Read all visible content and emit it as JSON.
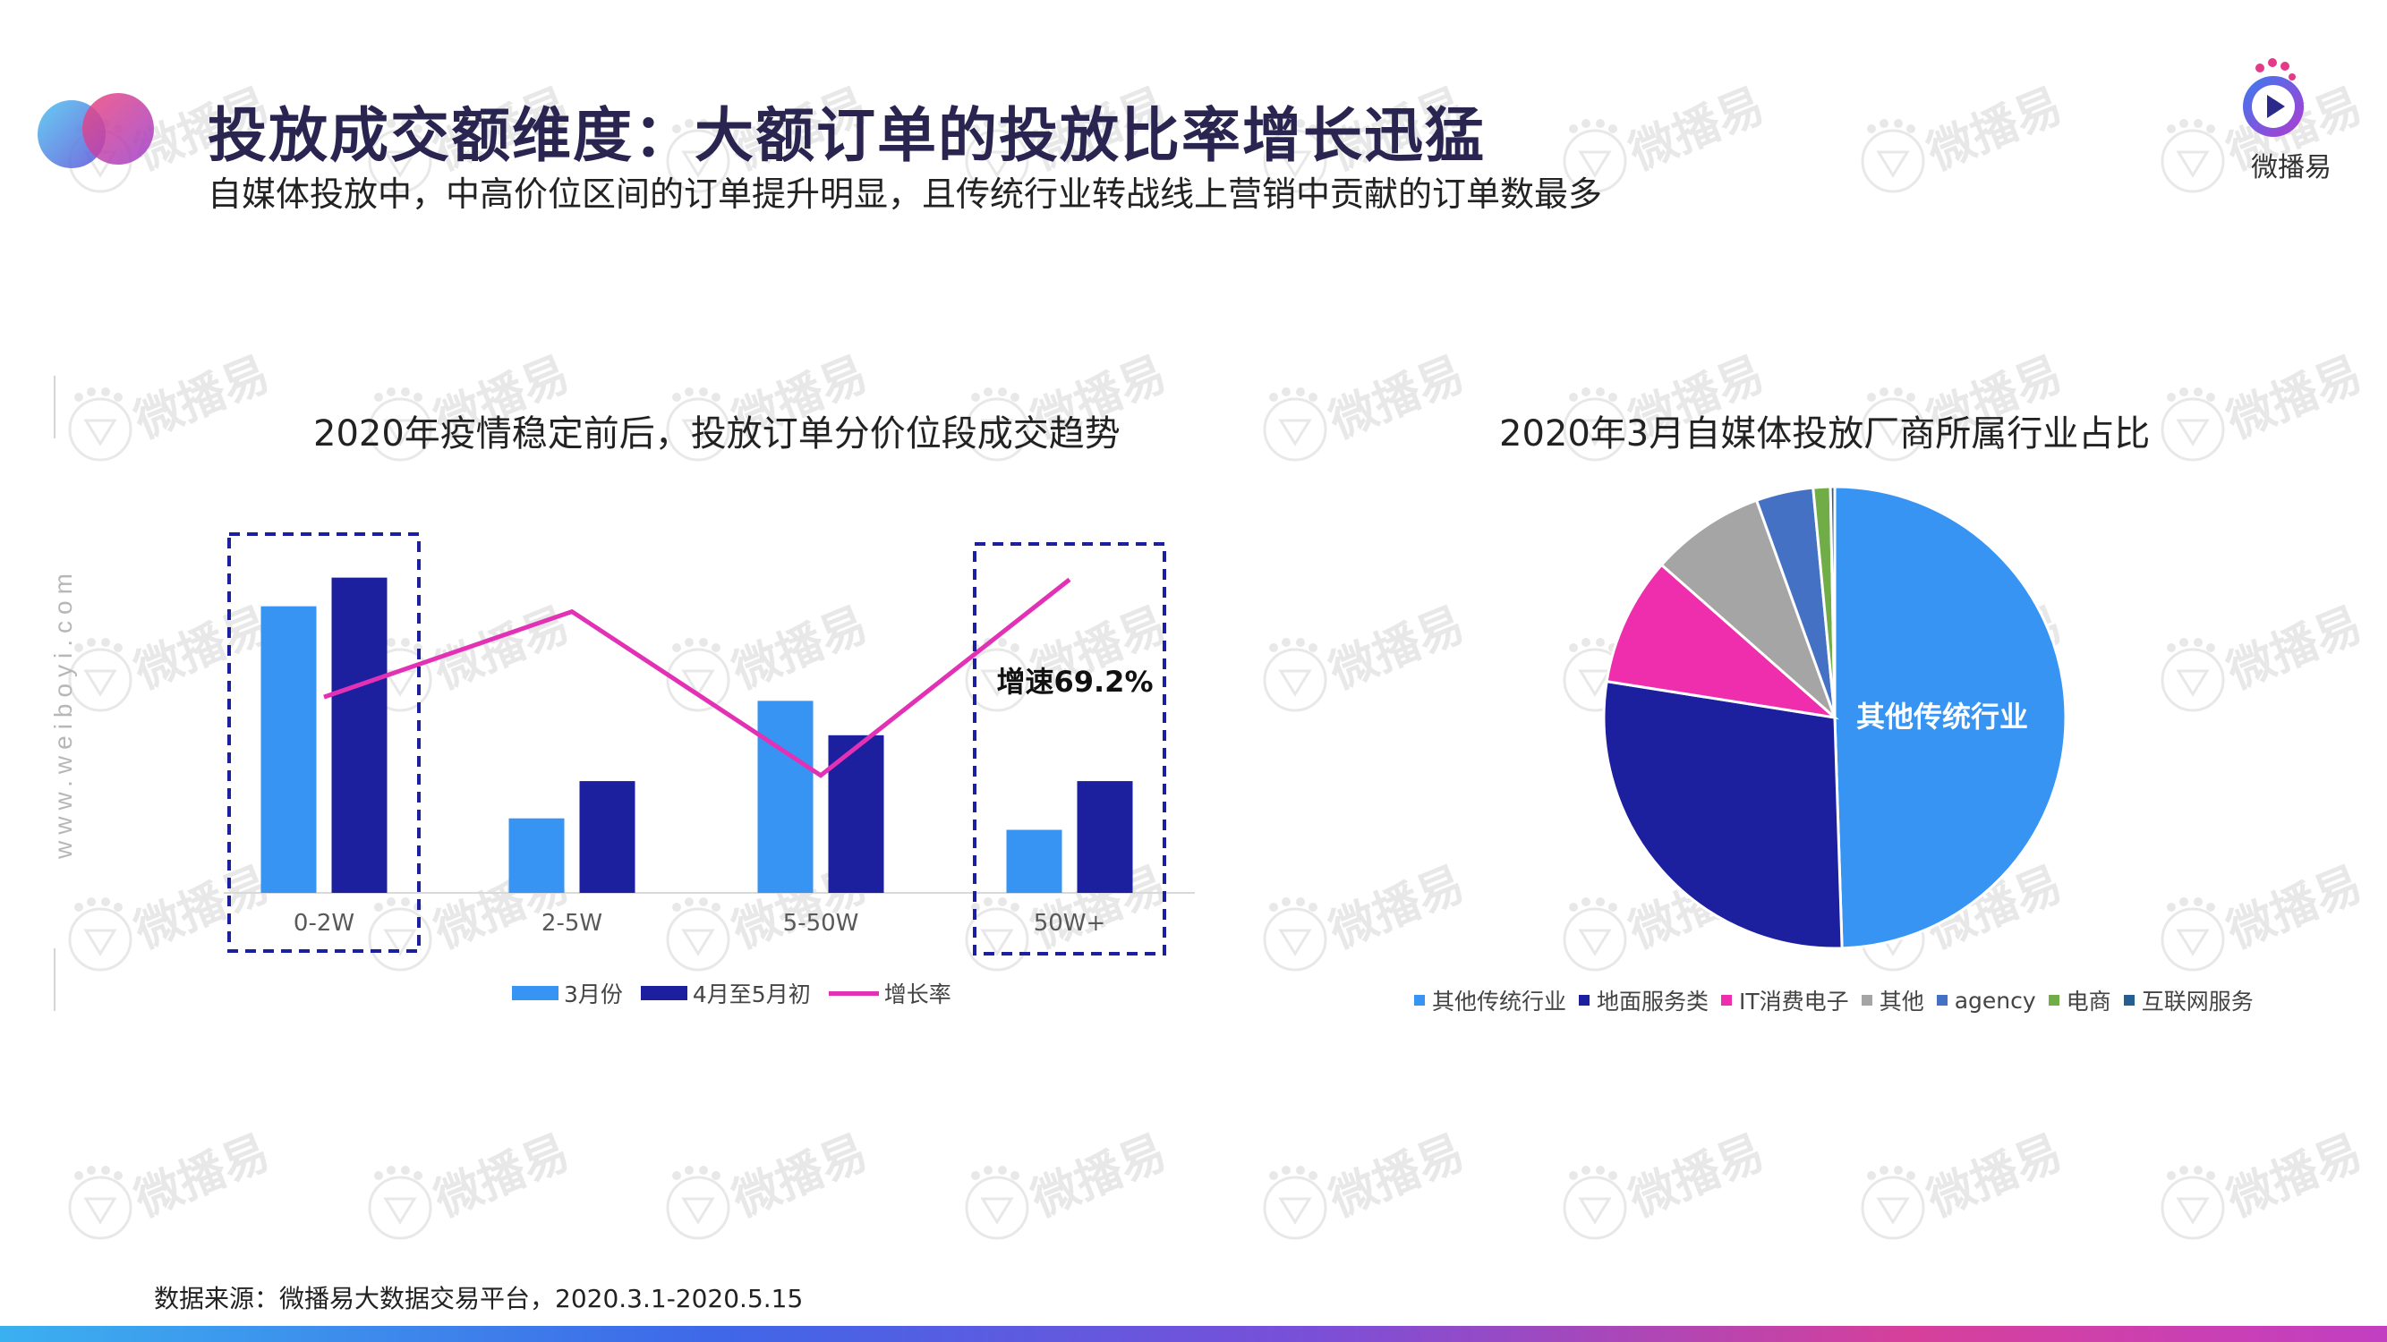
{
  "header": {
    "title": "投放成交额维度：大额订单的投放比率增长迅猛",
    "subtitle": "自媒体投放中，中高价位区间的订单提升明显，且传统行业转战线上营销中贡献的订单数最多"
  },
  "brand": {
    "logo_text": "微播易",
    "side_url": "www.weiboyi.com",
    "watermark_text": "微播易",
    "colors": {
      "navy": "#1c1f9e",
      "light_blue": "#3794f3",
      "magenta": "#e331b6",
      "pink": "#ee2ead",
      "gray": "#a5a5a5",
      "mid_blue": "#4471c4",
      "green": "#70ad47",
      "steel_blue": "#255e91",
      "title_color": "#2a2550"
    }
  },
  "source": "数据来源：微播易大数据交易平台，2020.3.1-2020.5.15",
  "chart_data": [
    {
      "type": "bar",
      "title": "2020年疫情稳定前后，投放订单分价位段成交趋势",
      "categories": [
        "0-2W",
        "2-5W",
        "5-50W",
        "50W+"
      ],
      "series": [
        {
          "name": "3月份",
          "kind": "bar",
          "color": "#3794f3",
          "values": [
            100,
            26,
            67,
            22
          ]
        },
        {
          "name": "4月至5月初",
          "kind": "bar",
          "color": "#1c1f9e",
          "values": [
            110,
            39,
            55,
            39
          ]
        },
        {
          "name": "增长率",
          "kind": "line",
          "color": "#e331b6",
          "values": [
            55,
            79,
            33,
            88
          ]
        }
      ],
      "annotation": "增速69.2%",
      "highlighted_categories": [
        "0-2W",
        "50W+"
      ],
      "grid": false
    },
    {
      "type": "pie",
      "title": "2020年3月自媒体投放厂商所属行业占比",
      "slices": [
        {
          "label": "其他传统行业",
          "value": 49.5,
          "color": "#3794f3"
        },
        {
          "label": "地面服务类",
          "value": 28,
          "color": "#1c1f9e"
        },
        {
          "label": "IT消费电子",
          "value": 9,
          "color": "#ee2ead"
        },
        {
          "label": "其他",
          "value": 8,
          "color": "#a5a5a5"
        },
        {
          "label": "agency",
          "value": 4,
          "color": "#4471c4"
        },
        {
          "label": "电商",
          "value": 1.2,
          "color": "#70ad47"
        },
        {
          "label": "互联网服务",
          "value": 0.3,
          "color": "#255e91"
        }
      ],
      "inside_label": "其他传统行业",
      "legend_position": "bottom"
    }
  ]
}
